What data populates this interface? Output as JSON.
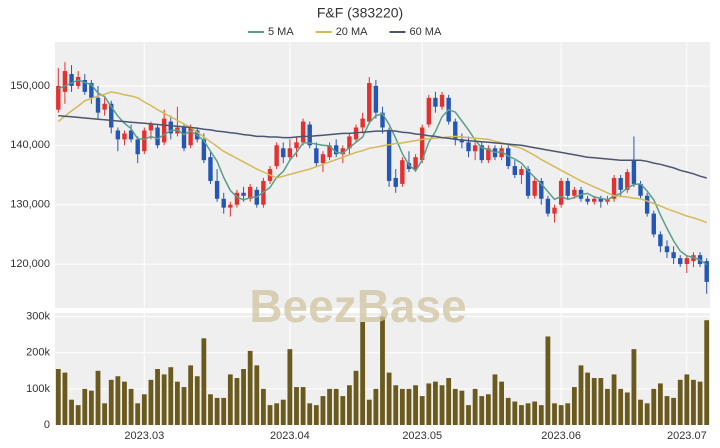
{
  "chart_data": [
    {
      "type": "candlestick",
      "title": "F&F (383220)",
      "watermark": "BeezBase",
      "up_color": "#e2312f",
      "down_color": "#2456b5",
      "grid": true,
      "ylim": [
        112600,
        157400
      ],
      "yticks": [
        {
          "value": 120000,
          "label": "120,000"
        },
        {
          "value": 130000,
          "label": "130,000"
        },
        {
          "value": 140000,
          "label": "140,000"
        },
        {
          "value": 150000,
          "label": "150,000"
        }
      ],
      "open": [
        146000,
        149000,
        152000,
        150000,
        151000,
        150500,
        148000,
        146000,
        147000,
        142500,
        141000,
        142500,
        141000,
        139000,
        142500,
        143000,
        140500,
        144000,
        142000,
        143000,
        140000,
        142500,
        141000,
        138000,
        134000,
        131000,
        129500,
        130000,
        132000,
        131000,
        132500,
        130000,
        134000,
        136500,
        139500,
        138000,
        139500,
        140500,
        143500,
        139500,
        137000,
        138000,
        140000,
        138500,
        139500,
        141000,
        143000,
        144000,
        150000,
        145500,
        142500,
        134500,
        133500,
        137000,
        136000,
        137500,
        143500,
        148000,
        146500,
        148000,
        144000,
        141000,
        140500,
        139000,
        140000,
        137500,
        139500,
        138000,
        139500,
        136500,
        135000,
        136000,
        131500,
        134000,
        131000,
        128500,
        130000,
        134000,
        131500,
        132500,
        131000,
        130500,
        131000,
        130500,
        131000,
        134500,
        132500,
        137500,
        133500,
        131500,
        128500,
        125000,
        123000,
        122000,
        121000,
        120000,
        120500,
        121500,
        120500
      ],
      "high": [
        153000,
        154000,
        153500,
        152500,
        152000,
        151000,
        150000,
        148000,
        147500,
        143000,
        142500,
        143500,
        141500,
        143000,
        144000,
        143500,
        146000,
        145000,
        146500,
        143500,
        143500,
        143000,
        142000,
        139000,
        136000,
        132000,
        130500,
        132500,
        133000,
        133500,
        133000,
        134500,
        136500,
        140500,
        140500,
        141000,
        141500,
        144500,
        144000,
        140500,
        139000,
        140500,
        141000,
        140000,
        142000,
        143500,
        145500,
        151500,
        151000,
        146500,
        143000,
        136000,
        138000,
        139000,
        138500,
        143500,
        148500,
        149000,
        149000,
        148500,
        144500,
        142000,
        141500,
        140500,
        140500,
        140000,
        140000,
        140000,
        140000,
        137500,
        136500,
        136500,
        134500,
        134500,
        131500,
        130000,
        134500,
        134500,
        133000,
        133000,
        131500,
        131500,
        131500,
        131500,
        135000,
        135000,
        136000,
        141500,
        134000,
        132000,
        129000,
        125500,
        124000,
        123000,
        121500,
        121500,
        122000,
        122000,
        121000
      ],
      "low": [
        145500,
        147000,
        149000,
        149500,
        148500,
        147000,
        144500,
        145000,
        142000,
        139000,
        140000,
        140500,
        137000,
        138500,
        141000,
        139500,
        140000,
        141000,
        141500,
        139000,
        139500,
        140500,
        137000,
        133500,
        130500,
        128500,
        128000,
        129500,
        130500,
        130500,
        129500,
        129500,
        133500,
        136000,
        137000,
        137500,
        138000,
        140000,
        139500,
        136500,
        135500,
        137500,
        138000,
        137000,
        138500,
        140500,
        142000,
        143500,
        144500,
        142000,
        133000,
        132000,
        133000,
        135500,
        135500,
        137000,
        143000,
        145500,
        146000,
        143500,
        140000,
        139500,
        138000,
        137500,
        137000,
        137000,
        137500,
        137500,
        136000,
        134500,
        133500,
        131000,
        131000,
        130000,
        128000,
        127000,
        129500,
        131000,
        131000,
        130500,
        130000,
        130000,
        129500,
        130000,
        130500,
        131500,
        132000,
        133000,
        131000,
        128000,
        124500,
        122000,
        121000,
        120000,
        119500,
        118500,
        119500,
        119500,
        115000
      ],
      "close": [
        150000,
        152500,
        150000,
        151500,
        149000,
        148000,
        145500,
        147000,
        143000,
        141000,
        142000,
        141000,
        138500,
        142500,
        143500,
        140000,
        144500,
        142000,
        143000,
        139500,
        143000,
        141000,
        137500,
        134000,
        131000,
        129500,
        130000,
        132000,
        131500,
        133000,
        130000,
        134000,
        136000,
        140000,
        138000,
        139500,
        140500,
        144000,
        140000,
        137000,
        138500,
        140000,
        138500,
        139500,
        141500,
        143000,
        144500,
        150500,
        145500,
        143000,
        134000,
        133000,
        137500,
        136000,
        138000,
        143000,
        148000,
        146500,
        148500,
        144000,
        141000,
        140500,
        139000,
        140000,
        137500,
        139500,
        138000,
        139500,
        136500,
        135000,
        136000,
        131500,
        134000,
        131000,
        128500,
        129500,
        134000,
        131500,
        132500,
        131000,
        130500,
        131000,
        130500,
        131000,
        134500,
        132500,
        135500,
        133500,
        131500,
        128500,
        125000,
        123000,
        122000,
        121000,
        120000,
        121000,
        121500,
        120000,
        117000
      ],
      "series": [
        {
          "name": "5 MA",
          "color": "#5a9e8a",
          "values": [
            149500,
            150000,
            150500,
            151000,
            150600,
            150200,
            148800,
            148200,
            146500,
            144900,
            143700,
            142800,
            141100,
            141000,
            141500,
            141100,
            141800,
            142500,
            142600,
            141800,
            142400,
            141700,
            140800,
            139000,
            137300,
            134600,
            132400,
            131300,
            130800,
            131200,
            131300,
            132100,
            132900,
            134600,
            135600,
            137500,
            138800,
            140400,
            140400,
            140200,
            140000,
            139900,
            138800,
            138700,
            139600,
            140500,
            141400,
            143800,
            145000,
            145300,
            143500,
            141200,
            138600,
            136700,
            135700,
            137500,
            140500,
            142300,
            144800,
            146000,
            145600,
            144100,
            142600,
            140900,
            139600,
            139300,
            138800,
            138900,
            138200,
            137700,
            137000,
            135700,
            134600,
            133500,
            132200,
            130900,
            131400,
            130900,
            131200,
            131700,
            131900,
            131300,
            131100,
            130800,
            131500,
            131900,
            132800,
            133400,
            133500,
            132300,
            130800,
            128300,
            126000,
            123900,
            122200,
            121400,
            121100,
            120700,
            119900
          ]
        },
        {
          "name": "20 MA",
          "color": "#d4b95a",
          "values": [
            144000,
            144900,
            145800,
            146600,
            147500,
            147900,
            148300,
            148600,
            149000,
            148800,
            148500,
            148300,
            148000,
            147300,
            146700,
            146000,
            145400,
            144800,
            144200,
            143600,
            143000,
            142200,
            141400,
            140600,
            139800,
            139000,
            138400,
            137800,
            137200,
            136600,
            136000,
            135500,
            135000,
            134500,
            134800,
            135100,
            135400,
            135700,
            136000,
            136400,
            136800,
            137200,
            137600,
            138000,
            138400,
            138800,
            139100,
            139500,
            139700,
            139900,
            140100,
            140300,
            140400,
            140600,
            140800,
            141000,
            141100,
            141200,
            141300,
            141400,
            141500,
            141400,
            141300,
            141200,
            141100,
            141000,
            140700,
            140400,
            140100,
            139800,
            139500,
            138900,
            138300,
            137600,
            137000,
            136400,
            135800,
            135200,
            134600,
            134000,
            133500,
            133000,
            132500,
            132000,
            131500,
            131400,
            131300,
            131100,
            131000,
            130600,
            130200,
            129800,
            129300,
            128900,
            128500,
            128100,
            127800,
            127400,
            127000
          ]
        },
        {
          "name": "60 MA",
          "color": "#4a5670",
          "values": [
            145000,
            144900,
            144800,
            144700,
            144600,
            144500,
            144400,
            144300,
            144200,
            144100,
            144000,
            143900,
            143800,
            143700,
            143600,
            143500,
            143400,
            143300,
            143200,
            143100,
            143000,
            142900,
            142700,
            142600,
            142400,
            142300,
            142100,
            142000,
            141800,
            141700,
            141500,
            141500,
            141400,
            141400,
            141300,
            141300,
            141400,
            141500,
            141500,
            141600,
            141700,
            141800,
            141900,
            142000,
            142000,
            142100,
            142200,
            142300,
            142400,
            142400,
            142500,
            142400,
            142200,
            142100,
            141900,
            141800,
            141600,
            141500,
            141300,
            141200,
            141000,
            140900,
            140800,
            140700,
            140600,
            140500,
            140400,
            140300,
            140200,
            140100,
            140000,
            139800,
            139600,
            139400,
            139200,
            139000,
            138800,
            138600,
            138400,
            138200,
            138000,
            137900,
            137800,
            137700,
            137600,
            137500,
            137500,
            137500,
            137500,
            137300,
            137000,
            136800,
            136500,
            136200,
            135800,
            135500,
            135200,
            134800,
            134500
          ]
        }
      ]
    },
    {
      "type": "bar",
      "color": "#6b5a1e",
      "grid": true,
      "categories": [
        null,
        null,
        null,
        null,
        null,
        null,
        null,
        null,
        null,
        null,
        null,
        null,
        null,
        "2023.03",
        null,
        null,
        null,
        null,
        null,
        null,
        null,
        null,
        null,
        null,
        null,
        null,
        null,
        null,
        null,
        null,
        null,
        null,
        null,
        null,
        null,
        "2023.04",
        null,
        null,
        null,
        null,
        null,
        null,
        null,
        null,
        null,
        null,
        null,
        null,
        null,
        null,
        null,
        null,
        null,
        null,
        null,
        "2023.05",
        null,
        null,
        null,
        null,
        null,
        null,
        null,
        null,
        null,
        null,
        null,
        null,
        null,
        null,
        null,
        null,
        null,
        null,
        null,
        null,
        "2023.06",
        null,
        null,
        null,
        null,
        null,
        null,
        null,
        null,
        null,
        null,
        null,
        null,
        null,
        null,
        null,
        null,
        null,
        null,
        "2023.07",
        null,
        null,
        null
      ],
      "values": [
        155000,
        145000,
        70000,
        55000,
        100000,
        95000,
        150000,
        60000,
        125000,
        135000,
        120000,
        100000,
        60000,
        85000,
        125000,
        155000,
        140000,
        160000,
        120000,
        105000,
        165000,
        135000,
        240000,
        85000,
        75000,
        75000,
        140000,
        130000,
        155000,
        205000,
        165000,
        100000,
        55000,
        60000,
        70000,
        210000,
        105000,
        105000,
        60000,
        55000,
        80000,
        100000,
        100000,
        80000,
        110000,
        150000,
        285000,
        70000,
        100000,
        300000,
        145000,
        110000,
        100000,
        100000,
        110000,
        80000,
        115000,
        120000,
        110000,
        130000,
        100000,
        95000,
        55000,
        100000,
        80000,
        85000,
        140000,
        120000,
        75000,
        65000,
        55000,
        60000,
        65000,
        55000,
        245000,
        60000,
        55000,
        60000,
        105000,
        165000,
        145000,
        130000,
        130000,
        100000,
        140000,
        100000,
        90000,
        210000,
        70000,
        60000,
        100000,
        115000,
        80000,
        75000,
        125000,
        140000,
        125000,
        120000,
        290000
      ],
      "ylim": [
        0,
        310000
      ],
      "yticks": [
        0,
        {
          "value": 100000,
          "label": "100k"
        },
        {
          "value": 200000,
          "label": "200k"
        },
        {
          "value": 300000,
          "label": "300k"
        }
      ]
    }
  ]
}
